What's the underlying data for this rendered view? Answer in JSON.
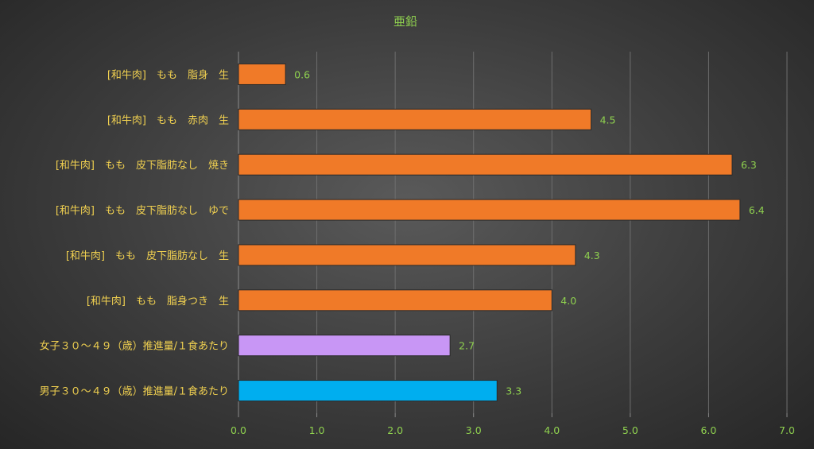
{
  "chart_data": {
    "type": "bar",
    "orientation": "horizontal",
    "title": "亜鉛",
    "xlabel": "",
    "ylabel": "",
    "xlim": [
      0,
      7
    ],
    "ticks": [
      "0.0",
      "1.0",
      "2.0",
      "3.0",
      "4.0",
      "5.0",
      "6.0",
      "7.0"
    ],
    "tick_values": [
      0,
      1,
      2,
      3,
      4,
      5,
      6,
      7
    ],
    "grid": true,
    "legend": "none",
    "categories": [
      "[和牛肉]　もも　脂身　生",
      "[和牛肉]　もも　赤肉　生",
      "[和牛肉]　もも　皮下脂肪なし　焼き",
      "[和牛肉]　もも　皮下脂肪なし　ゆで",
      "[和牛肉]　もも　皮下脂肪なし　生",
      "[和牛肉]　もも　脂身つき　生",
      "女子３０～４９（歳）推進量/１食あたり",
      "男子３０～４９（歳）推進量/１食あたり"
    ],
    "values": [
      0.6,
      4.5,
      6.3,
      6.4,
      4.3,
      4.0,
      2.7,
      3.3
    ],
    "value_labels": [
      "0.6",
      "4.5",
      "6.3",
      "6.4",
      "4.3",
      "4.0",
      "2.7",
      "3.3"
    ],
    "colors": [
      "#f07a28",
      "#f07a28",
      "#f07a28",
      "#f07a28",
      "#f07a28",
      "#f07a28",
      "#c896f5",
      "#00aeef"
    ]
  }
}
